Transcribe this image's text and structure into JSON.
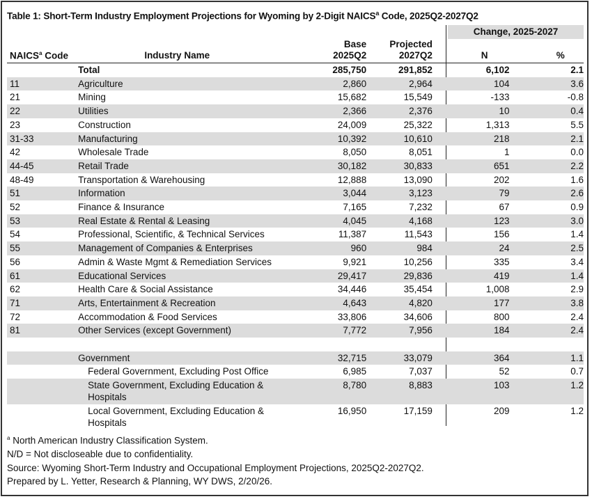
{
  "title": {
    "prefix": "Table 1: Short-Term Industry Employment Projections for Wyoming by 2-Digit NAICS",
    "sup": "a",
    "suffix": " Code, 2025Q2-2027Q2"
  },
  "headers": {
    "change_group": "Change, 2025-2027",
    "code": "NAICS",
    "code_sup": "a",
    "code_suffix": " Code",
    "name": "Industry Name",
    "base_1": "Base",
    "base_2": "2025Q2",
    "proj_1": "Projected",
    "proj_2": "2027Q2",
    "n": "N",
    "pct": "%"
  },
  "total": {
    "code": "",
    "name": "Total",
    "base": "285,750",
    "proj": "291,852",
    "n": "6,102",
    "pct": "2.1"
  },
  "rows": [
    {
      "code": "11",
      "name": "Agriculture",
      "base": "2,860",
      "proj": "2,964",
      "n": "104",
      "pct": "3.6"
    },
    {
      "code": "21",
      "name": "Mining",
      "base": "15,682",
      "proj": "15,549",
      "n": "-133",
      "pct": "-0.8"
    },
    {
      "code": "22",
      "name": "Utilities",
      "base": "2,366",
      "proj": "2,376",
      "n": "10",
      "pct": "0.4"
    },
    {
      "code": "23",
      "name": "Construction",
      "base": "24,009",
      "proj": "25,322",
      "n": "1,313",
      "pct": "5.5"
    },
    {
      "code": "31-33",
      "name": "Manufacturing",
      "base": "10,392",
      "proj": "10,610",
      "n": "218",
      "pct": "2.1"
    },
    {
      "code": "42",
      "name": "Wholesale Trade",
      "base": "8,050",
      "proj": "8,051",
      "n": "1",
      "pct": "0.0"
    },
    {
      "code": "44-45",
      "name": "Retail Trade",
      "base": "30,182",
      "proj": "30,833",
      "n": "651",
      "pct": "2.2"
    },
    {
      "code": "48-49",
      "name": "Transportation & Warehousing",
      "base": "12,888",
      "proj": "13,090",
      "n": "202",
      "pct": "1.6"
    },
    {
      "code": "51",
      "name": "Information",
      "base": "3,044",
      "proj": "3,123",
      "n": "79",
      "pct": "2.6"
    },
    {
      "code": "52",
      "name": "Finance & Insurance",
      "base": "7,165",
      "proj": "7,232",
      "n": "67",
      "pct": "0.9"
    },
    {
      "code": "53",
      "name": "Real Estate & Rental & Leasing",
      "base": "4,045",
      "proj": "4,168",
      "n": "123",
      "pct": "3.0"
    },
    {
      "code": "54",
      "name": "Professional, Scientific, & Technical Services",
      "base": "11,387",
      "proj": "11,543",
      "n": "156",
      "pct": "1.4"
    },
    {
      "code": "55",
      "name": "Management of Companies & Enterprises",
      "base": "960",
      "proj": "984",
      "n": "24",
      "pct": "2.5"
    },
    {
      "code": "56",
      "name": "Admin & Waste Mgmt & Remediation Services",
      "base": "9,921",
      "proj": "10,256",
      "n": "335",
      "pct": "3.4"
    },
    {
      "code": "61",
      "name": "Educational Services",
      "base": "29,417",
      "proj": "29,836",
      "n": "419",
      "pct": "1.4"
    },
    {
      "code": "62",
      "name": "Health Care & Social Assistance",
      "base": "34,446",
      "proj": "35,454",
      "n": "1,008",
      "pct": "2.9"
    },
    {
      "code": "71",
      "name": "Arts, Entertainment & Recreation",
      "base": "4,643",
      "proj": "4,820",
      "n": "177",
      "pct": "3.8"
    },
    {
      "code": "72",
      "name": "Accommodation & Food Services",
      "base": "33,806",
      "proj": "34,606",
      "n": "800",
      "pct": "2.4"
    },
    {
      "code": "81",
      "name": "Other Services (except Government)",
      "base": "7,772",
      "proj": "7,956",
      "n": "184",
      "pct": "2.4"
    }
  ],
  "government": {
    "name": "Government",
    "base": "32,715",
    "proj": "33,079",
    "n": "364",
    "pct": "1.1"
  },
  "gov_rows": [
    {
      "name": "Federal Government, Excluding Post Office",
      "base": "6,985",
      "proj": "7,037",
      "n": "52",
      "pct": "0.7"
    },
    {
      "name": "State Government, Excluding Education & Hospitals",
      "base": "8,780",
      "proj": "8,883",
      "n": "103",
      "pct": "1.2"
    },
    {
      "name": "Local Government, Excluding Education & Hospitals",
      "base": "16,950",
      "proj": "17,159",
      "n": "209",
      "pct": "1.2"
    }
  ],
  "footnotes": {
    "a_sup": "a",
    "a_text": " North American Industry Classification System.",
    "nd": "N/D = Not discloseable due to confidentiality.",
    "source": "Source: Wyoming Short-Term Industry and Occupational Employment Projections, 2025Q2-2027Q2.",
    "prepared": "Prepared by L. Yetter, Research & Planning, WY DWS, 2/20/26."
  },
  "colors": {
    "band": "#dcdcdc",
    "border": "#333333"
  }
}
